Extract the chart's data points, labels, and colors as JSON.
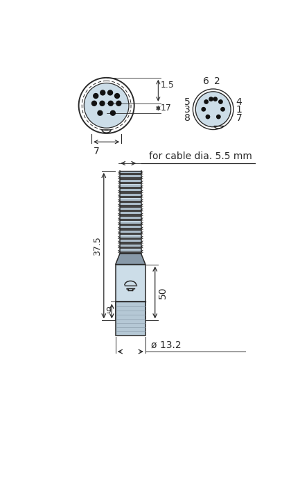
{
  "bg": "#ffffff",
  "lc": "#2a2a2a",
  "lb": "#ccdde8",
  "neck_color": "#9aacb8",
  "thread_light": "#ccdde8",
  "thread_dark": "#555555",
  "thread_mid": "#888888",
  "base_color": "#b8ccd8",
  "cable_text": "for cable dia. 5.5 mm",
  "dim_1_5": "1.5",
  "dim_17": "17",
  "dim_7": "7",
  "dim_50": "50",
  "dim_37_5": "37.5",
  "dim_9": "9",
  "dim_13_2": "ø 13.2"
}
